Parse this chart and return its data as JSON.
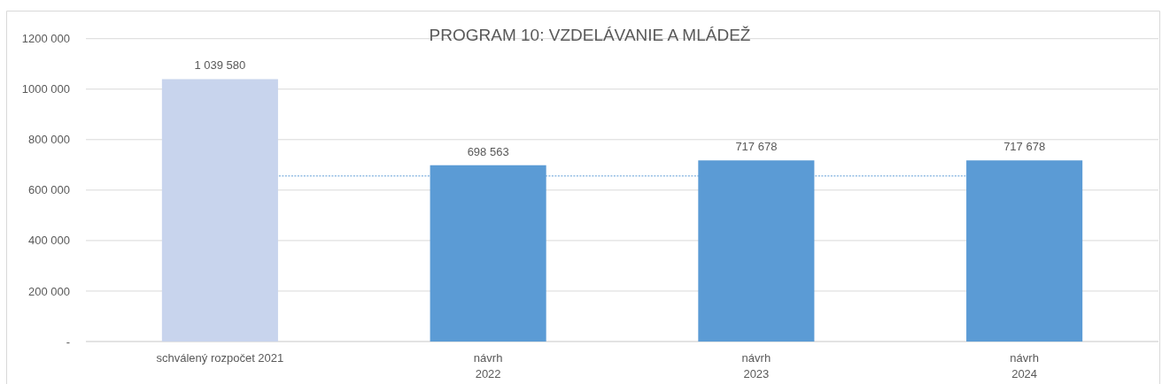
{
  "chart_data": {
    "type": "bar",
    "title": "PROGRAM 10: VZDELÁVANIE A MLÁDEŽ",
    "categories": [
      "schválený rozpočet 2021",
      "návrh\n2022",
      "návrh\n2023",
      "návrh\n2024"
    ],
    "values": [
      1039580,
      698563,
      717678,
      717678
    ],
    "colors": [
      "#c8d4ed",
      "#5b9bd5",
      "#5b9bd5",
      "#5b9bd5"
    ],
    "value_labels": [
      "1 039 580",
      "698 563",
      "717 678",
      "717 678"
    ],
    "ylim": [
      0,
      1200000
    ],
    "yticks": [
      {
        "value": 0,
        "label": "-"
      },
      {
        "value": 200000,
        "label": "200 000"
      },
      {
        "value": 400000,
        "label": "400 000"
      },
      {
        "value": 600000,
        "label": "600 000"
      },
      {
        "value": 800000,
        "label": "800 000"
      },
      {
        "value": 1000000,
        "label": "1000 000"
      },
      {
        "value": 1200000,
        "label": "1200 000"
      }
    ],
    "grid": "y",
    "ref_lines": [
      {
        "axis": "y",
        "value": 656000,
        "color": "#5b9bd5",
        "line_style": "dotted"
      }
    ]
  }
}
